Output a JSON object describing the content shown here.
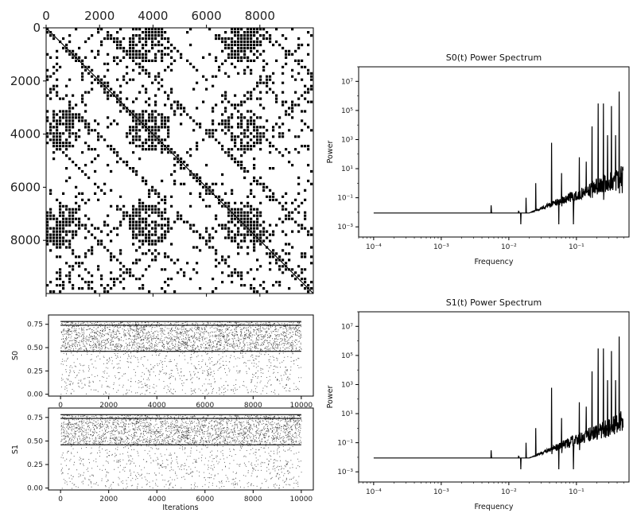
{
  "chart_data": [
    {
      "type": "heatmap",
      "description_panel": "recurrence-plot",
      "xticks": [
        "0",
        "2000",
        "4000",
        "6000",
        "8000"
      ],
      "yticks": [
        "0",
        "2000",
        "4000",
        "6000",
        "8000"
      ],
      "xlim": [
        0,
        10000
      ],
      "ylim": [
        10000,
        0
      ],
      "colors": {
        "on": "#000000",
        "off": "#ffffff"
      }
    },
    {
      "type": "line",
      "title": "S0(t) Power Spectrum",
      "xlabel": "Frequency",
      "ylabel": "Power",
      "xscale": "log",
      "yscale": "log",
      "xlim": [
        6e-05,
        0.6
      ],
      "ylim": [
        0.0002,
        100000000
      ],
      "xticks": [
        "10⁻⁴",
        "10⁻³",
        "10⁻²",
        "10⁻¹"
      ],
      "yticks": [
        "10⁻³",
        "10⁻¹",
        "10¹",
        "10³",
        "10⁵",
        "10⁷"
      ],
      "baseline": 0.009,
      "peaks": [
        {
          "f": 0.0055,
          "p": 0.03
        },
        {
          "f": 0.014,
          "p": 0.012
        },
        {
          "f": 0.018,
          "p": 0.1
        },
        {
          "f": 0.025,
          "p": 1.0
        },
        {
          "f": 0.043,
          "p": 600
        },
        {
          "f": 0.06,
          "p": 5
        },
        {
          "f": 0.09,
          "p": 300
        },
        {
          "f": 0.11,
          "p": 60
        },
        {
          "f": 0.14,
          "p": 30
        },
        {
          "f": 0.17,
          "p": 8000
        },
        {
          "f": 0.21,
          "p": 300000
        },
        {
          "f": 0.25,
          "p": 300000
        },
        {
          "f": 0.29,
          "p": 2000
        },
        {
          "f": 0.33,
          "p": 200000
        },
        {
          "f": 0.38,
          "p": 2000
        },
        {
          "f": 0.43,
          "p": 2000000
        },
        {
          "f": 0.47,
          "p": 5
        }
      ]
    },
    {
      "type": "line",
      "title": "S1(t) Power Spectrum",
      "xlabel": "Frequency",
      "ylabel": "Power",
      "xscale": "log",
      "yscale": "log",
      "xlim": [
        6e-05,
        0.6
      ],
      "ylim": [
        0.0002,
        100000000
      ],
      "xticks": [
        "10⁻⁴",
        "10⁻³",
        "10⁻²",
        "10⁻¹"
      ],
      "yticks": [
        "10⁻³",
        "10⁻¹",
        "10¹",
        "10³",
        "10⁵",
        "10⁷"
      ],
      "baseline": 0.009,
      "peaks": [
        {
          "f": 0.0055,
          "p": 0.03
        },
        {
          "f": 0.014,
          "p": 0.012
        },
        {
          "f": 0.018,
          "p": 0.1
        },
        {
          "f": 0.025,
          "p": 1.0
        },
        {
          "f": 0.043,
          "p": 600
        },
        {
          "f": 0.06,
          "p": 5
        },
        {
          "f": 0.09,
          "p": 300
        },
        {
          "f": 0.11,
          "p": 60
        },
        {
          "f": 0.14,
          "p": 30
        },
        {
          "f": 0.17,
          "p": 8000
        },
        {
          "f": 0.21,
          "p": 300000
        },
        {
          "f": 0.25,
          "p": 300000
        },
        {
          "f": 0.29,
          "p": 2000
        },
        {
          "f": 0.33,
          "p": 200000
        },
        {
          "f": 0.38,
          "p": 2000
        },
        {
          "f": 0.43,
          "p": 2000000
        },
        {
          "f": 0.47,
          "p": 5
        }
      ]
    },
    {
      "type": "scatter",
      "ylabel": "S0",
      "xlim": [
        -500,
        10500
      ],
      "ylim": [
        -0.02,
        0.85
      ],
      "xticks": [
        "0",
        "2000",
        "4000",
        "6000",
        "8000",
        "10000"
      ],
      "yticks": [
        "0.00",
        "0.25",
        "0.50",
        "0.75"
      ],
      "dense_band": [
        0.46,
        0.78
      ]
    },
    {
      "type": "scatter",
      "xlabel": "Iterations",
      "ylabel": "S1",
      "xlim": [
        -500,
        10500
      ],
      "ylim": [
        -0.02,
        0.85
      ],
      "xticks": [
        "0",
        "2000",
        "4000",
        "6000",
        "8000",
        "10000"
      ],
      "yticks": [
        "0.00",
        "0.25",
        "0.50",
        "0.75"
      ],
      "dense_band": [
        0.46,
        0.78
      ]
    }
  ]
}
